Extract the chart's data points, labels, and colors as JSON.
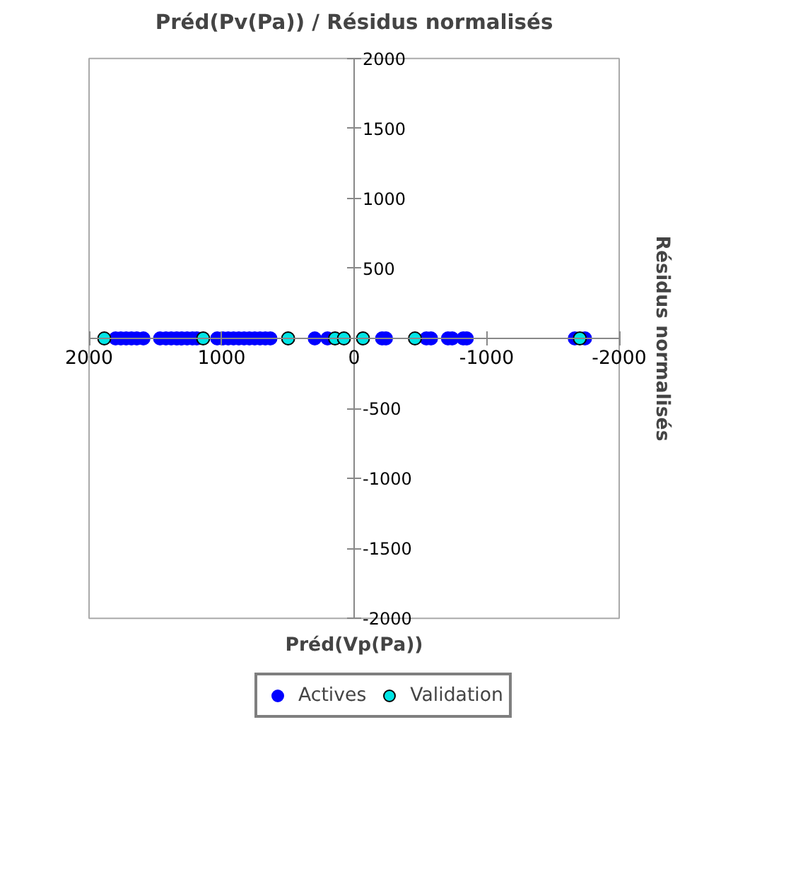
{
  "chart_data": {
    "type": "scatter",
    "title": "Préd(Pv(Pa)) / Résidus normalisés",
    "xlabel": "Préd(Vp(Pa))",
    "ylabel": "Résidus normalisés",
    "xlim": [
      2000,
      -2000
    ],
    "ylim": [
      -2000,
      2000
    ],
    "xticks": [
      2000,
      1000,
      0,
      -1000,
      -2000
    ],
    "yticks": [
      -2000,
      -1500,
      -1000,
      -500,
      500,
      1000,
      1500,
      2000
    ],
    "grid": false,
    "legend": "bottom",
    "marker": "circle",
    "series": [
      {
        "name": "Actives",
        "color": "#0000ff",
        "x": [
          1800,
          1760,
          1720,
          1680,
          1640,
          1590,
          1464,
          1420,
          1380,
          1340,
          1300,
          1260,
          1220,
          1187,
          1033,
          990,
          950,
          910,
          870,
          830,
          790,
          750,
          710,
          670,
          632,
          297,
          201,
          -211,
          -240,
          -545,
          -580,
          -708,
          -740,
          -823,
          -850,
          -1665,
          -1742
        ],
        "values": [
          0,
          0,
          0,
          0,
          0,
          0,
          0,
          0,
          0,
          0,
          0,
          0,
          0,
          0,
          0,
          0,
          0,
          0,
          0,
          0,
          0,
          0,
          0,
          0,
          0,
          0,
          0,
          0,
          0,
          0,
          0,
          0,
          0,
          0,
          0,
          0,
          0
        ]
      },
      {
        "name": "Validation",
        "color": "#00e5e5",
        "x": [
          1885,
          1139,
          498,
          144,
          77,
          -67,
          -459,
          -1703
        ],
        "values": [
          0,
          0,
          0,
          0,
          0,
          0,
          0,
          0
        ]
      }
    ]
  }
}
